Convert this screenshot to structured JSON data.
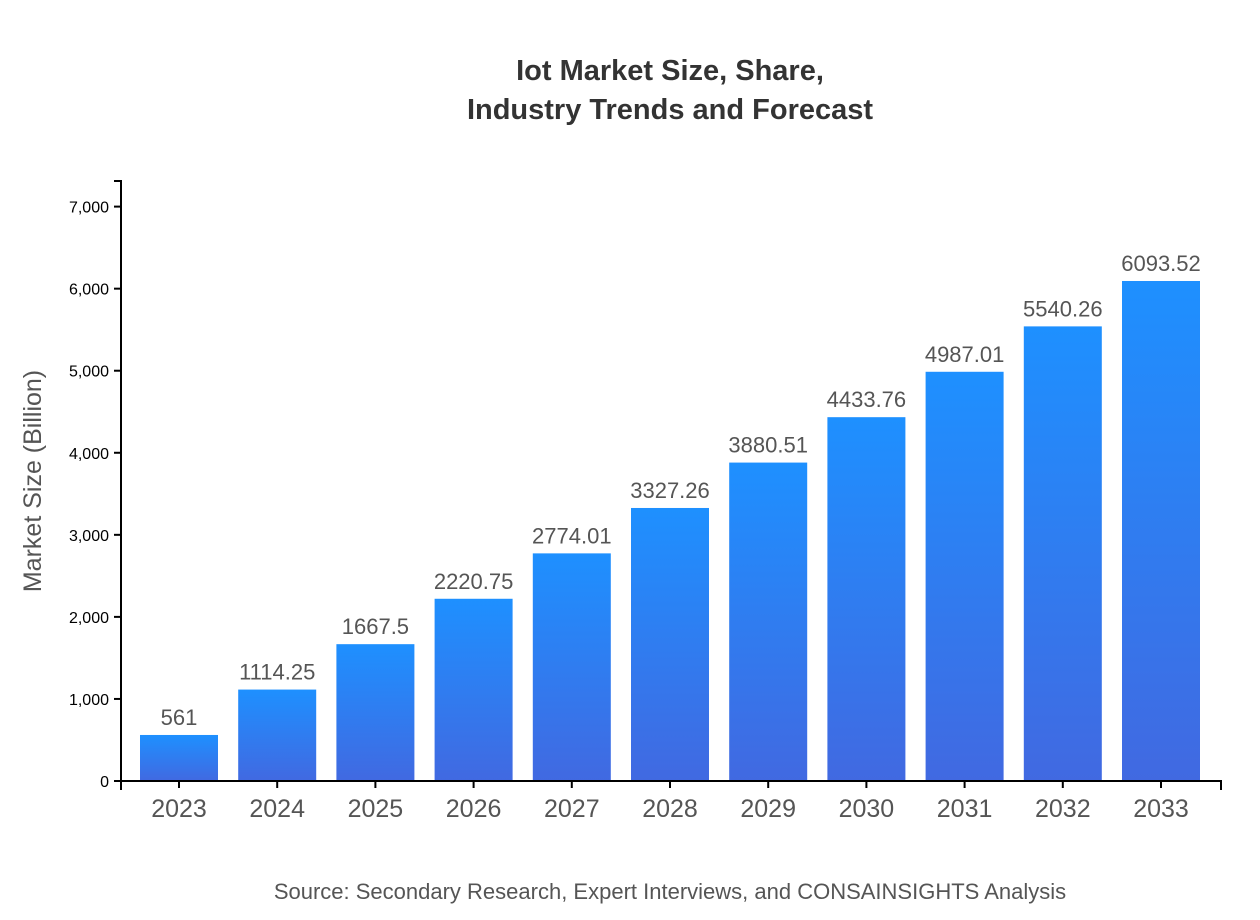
{
  "chart_data": {
    "type": "bar",
    "title_lines": [
      "Iot Market Size, Share,",
      "Industry Trends and Forecast"
    ],
    "xlabel": "",
    "ylabel": "Market Size (Billion)",
    "categories": [
      "2023",
      "2024",
      "2025",
      "2026",
      "2027",
      "2028",
      "2029",
      "2030",
      "2031",
      "2032",
      "2033"
    ],
    "values": [
      561,
      1114.25,
      1667.5,
      2220.75,
      2774.01,
      3327.26,
      3880.51,
      4433.76,
      4987.01,
      5540.26,
      6093.52
    ],
    "data_labels": [
      "561",
      "1114.25",
      "1667.5",
      "2220.75",
      "2774.01",
      "3327.26",
      "3880.51",
      "4433.76",
      "4987.01",
      "5540.26",
      "6093.52"
    ],
    "yticks": [
      0,
      1000,
      2000,
      3000,
      4000,
      5000,
      6000,
      7000
    ],
    "ytick_labels": [
      "0",
      "1,000",
      "2,000",
      "3,000",
      "4,000",
      "5,000",
      "6,000",
      "7,000"
    ],
    "ylim": [
      0,
      7312
    ],
    "grid": false,
    "colors": {
      "bar_top": "#1e90ff",
      "bar_bottom": "#4169e1"
    },
    "source": "Source: Secondary Research, Expert Interviews, and CONSAINSIGHTS Analysis"
  }
}
